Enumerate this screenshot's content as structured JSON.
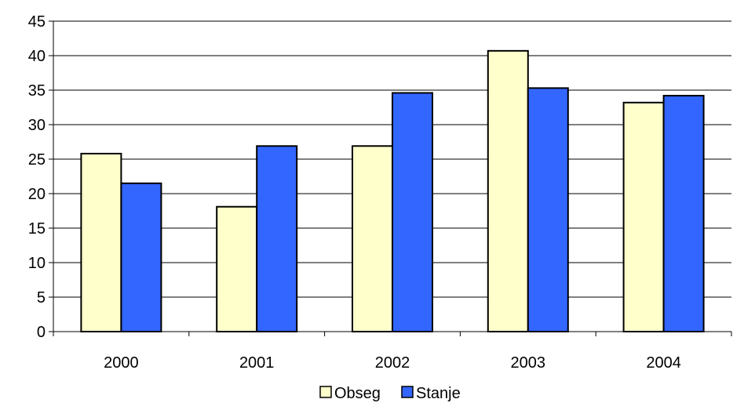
{
  "chart_data": {
    "type": "bar",
    "title": "",
    "xlabel": "",
    "ylabel": "",
    "categories": [
      "2000",
      "2001",
      "2002",
      "2003",
      "2004"
    ],
    "ylim": [
      0,
      45
    ],
    "yticks": [
      "0",
      "5",
      "10",
      "15",
      "20",
      "25",
      "30",
      "35",
      "40",
      "45"
    ],
    "grid": true,
    "legend_position": "bottom",
    "series": [
      {
        "name": "Obseg",
        "color": "#FFFFCC",
        "values": [
          25.8,
          18.1,
          26.9,
          40.7,
          33.2
        ]
      },
      {
        "name": "Stanje",
        "color": "#3366FF",
        "values": [
          21.5,
          26.9,
          34.6,
          35.3,
          34.2
        ]
      }
    ]
  }
}
